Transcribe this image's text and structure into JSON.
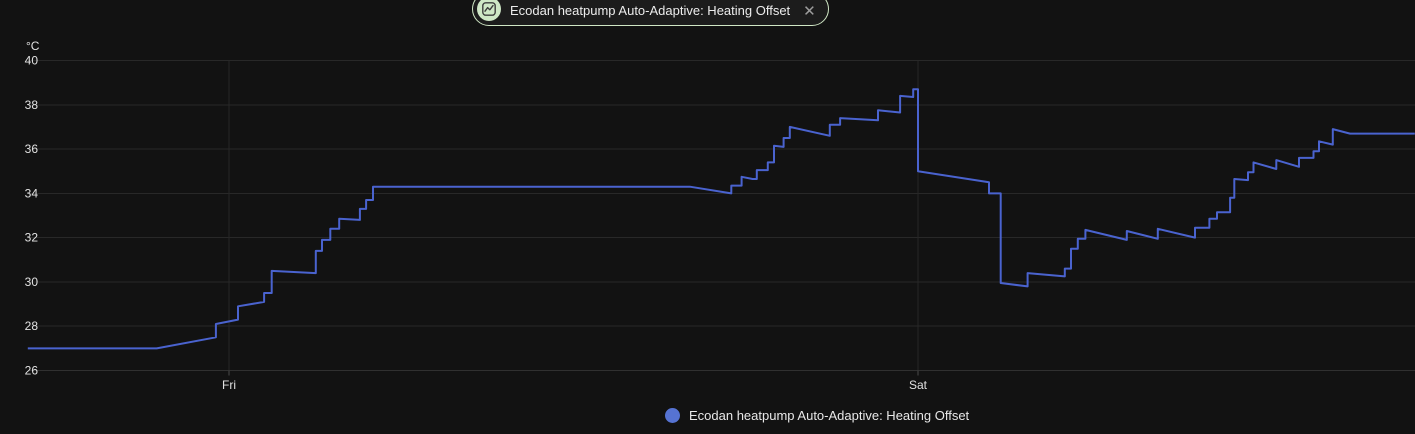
{
  "header": {
    "tab": {
      "icon": "line-chart-icon",
      "icon_bg": "#cfe7c6",
      "icon_stroke": "#3d3d3d",
      "border_color": "#cfe6c4",
      "label": "Ecodan heatpump Auto-Adaptive: Heating Offset",
      "close_glyph": "✕"
    }
  },
  "legend": {
    "dot_color": "#5673d2",
    "label": "Ecodan heatpump Auto-Adaptive: Heating Offset"
  },
  "colors": {
    "background": "#121212",
    "gridline": "#282828",
    "axis_line": "#303030",
    "tick_text": "#e2e2e2",
    "line": "#4a63cf"
  },
  "chart_data": {
    "type": "line",
    "title": "Ecodan heatpump Auto-Adaptive: Heating Offset",
    "xlabel": "",
    "ylabel": "°C",
    "unit": "°C",
    "ylim": [
      26,
      40
    ],
    "yticks": [
      26,
      28,
      30,
      32,
      34,
      36,
      38,
      40
    ],
    "xticks": [
      {
        "label": "Fri",
        "day": 0
      },
      {
        "label": "Sat",
        "day": 1
      }
    ],
    "grid": true,
    "legend_position": "bottom",
    "x_unit": "days_since_Fri_00:00",
    "series": [
      {
        "name": "Ecodan heatpump Auto-Adaptive: Heating Offset",
        "color": "#4a63cf",
        "points": [
          [
            -0.292,
            27.0
          ],
          [
            -0.105,
            27.0
          ],
          [
            -0.019,
            27.5
          ],
          [
            -0.019,
            28.1
          ],
          [
            0.013,
            28.3
          ],
          [
            0.013,
            28.9
          ],
          [
            0.051,
            29.1
          ],
          [
            0.051,
            29.5
          ],
          [
            0.062,
            29.5
          ],
          [
            0.062,
            30.5
          ],
          [
            0.126,
            30.4
          ],
          [
            0.126,
            31.4
          ],
          [
            0.135,
            31.4
          ],
          [
            0.135,
            31.9
          ],
          [
            0.147,
            31.9
          ],
          [
            0.147,
            32.4
          ],
          [
            0.16,
            32.4
          ],
          [
            0.16,
            32.85
          ],
          [
            0.19,
            32.8
          ],
          [
            0.19,
            33.3
          ],
          [
            0.199,
            33.3
          ],
          [
            0.199,
            33.7
          ],
          [
            0.209,
            33.7
          ],
          [
            0.209,
            34.3
          ],
          [
            0.669,
            34.3
          ],
          [
            0.729,
            34.0
          ],
          [
            0.729,
            34.35
          ],
          [
            0.744,
            34.35
          ],
          [
            0.744,
            34.75
          ],
          [
            0.76,
            34.65
          ],
          [
            0.766,
            34.65
          ],
          [
            0.766,
            35.05
          ],
          [
            0.782,
            35.05
          ],
          [
            0.782,
            35.4
          ],
          [
            0.791,
            35.4
          ],
          [
            0.791,
            36.15
          ],
          [
            0.805,
            36.1
          ],
          [
            0.805,
            36.5
          ],
          [
            0.814,
            36.5
          ],
          [
            0.814,
            37.0
          ],
          [
            0.872,
            36.6
          ],
          [
            0.872,
            37.1
          ],
          [
            0.887,
            37.1
          ],
          [
            0.887,
            37.4
          ],
          [
            0.942,
            37.3
          ],
          [
            0.942,
            37.75
          ],
          [
            0.974,
            37.65
          ],
          [
            0.974,
            38.4
          ],
          [
            0.993,
            38.35
          ],
          [
            0.993,
            38.7
          ],
          [
            1.0,
            38.7
          ],
          [
            1.0,
            35.0
          ],
          [
            1.103,
            34.5
          ],
          [
            1.103,
            34.0
          ],
          [
            1.12,
            34.0
          ],
          [
            1.12,
            29.95
          ],
          [
            1.159,
            29.8
          ],
          [
            1.159,
            30.4
          ],
          [
            1.213,
            30.25
          ],
          [
            1.213,
            30.6
          ],
          [
            1.222,
            30.6
          ],
          [
            1.222,
            31.5
          ],
          [
            1.232,
            31.5
          ],
          [
            1.232,
            31.95
          ],
          [
            1.243,
            31.95
          ],
          [
            1.243,
            32.35
          ],
          [
            1.303,
            31.9
          ],
          [
            1.303,
            32.3
          ],
          [
            1.348,
            31.95
          ],
          [
            1.348,
            32.4
          ],
          [
            1.402,
            32.0
          ],
          [
            1.402,
            32.45
          ],
          [
            1.423,
            32.45
          ],
          [
            1.423,
            32.85
          ],
          [
            1.434,
            32.85
          ],
          [
            1.434,
            33.15
          ],
          [
            1.453,
            33.15
          ],
          [
            1.453,
            33.8
          ],
          [
            1.459,
            33.8
          ],
          [
            1.459,
            34.65
          ],
          [
            1.479,
            34.6
          ],
          [
            1.479,
            34.95
          ],
          [
            1.487,
            34.95
          ],
          [
            1.487,
            35.4
          ],
          [
            1.52,
            35.1
          ],
          [
            1.52,
            35.5
          ],
          [
            1.553,
            35.2
          ],
          [
            1.553,
            35.6
          ],
          [
            1.574,
            35.6
          ],
          [
            1.574,
            35.9
          ],
          [
            1.582,
            35.9
          ],
          [
            1.582,
            36.35
          ],
          [
            1.602,
            36.2
          ],
          [
            1.602,
            36.9
          ],
          [
            1.627,
            36.7
          ],
          [
            1.721,
            36.7
          ]
        ]
      }
    ]
  }
}
